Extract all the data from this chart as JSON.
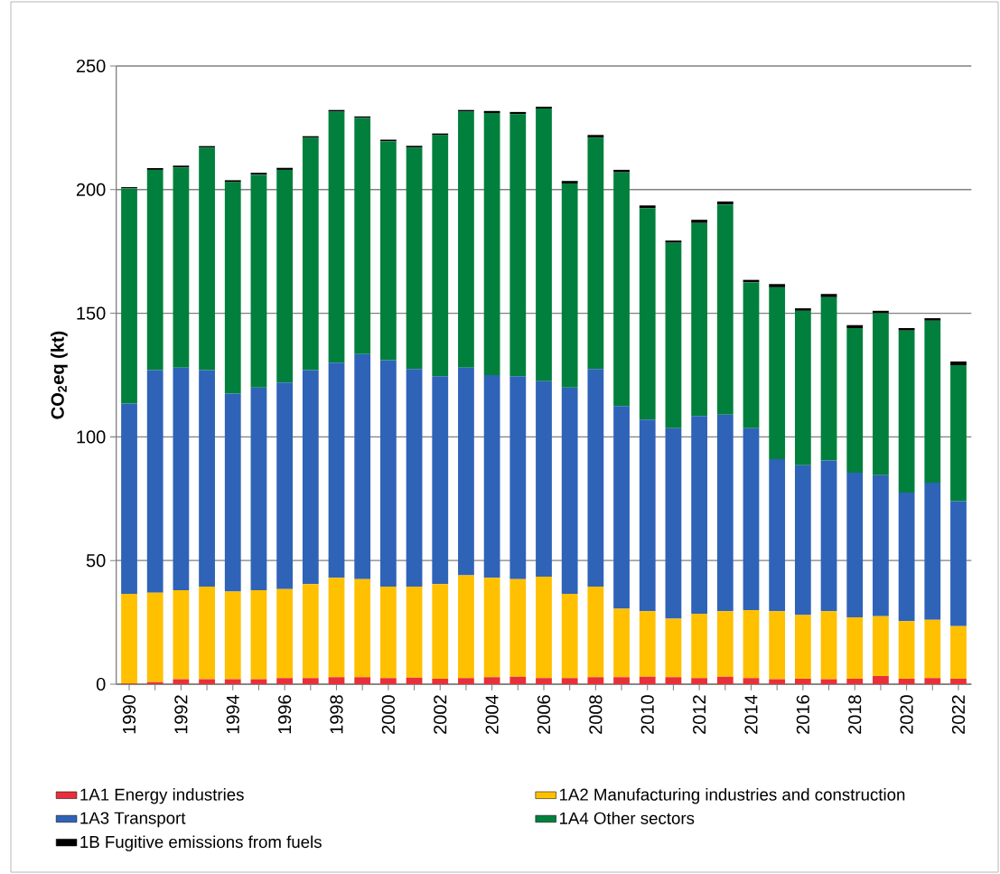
{
  "chart_data": {
    "type": "bar",
    "stacked": true,
    "ylabel": "CO$_{2}$eq (kt)",
    "categories": [
      "1990",
      null,
      "1992",
      null,
      "1994",
      null,
      "1996",
      null,
      "1998",
      null,
      "2000",
      null,
      "2002",
      null,
      "2004",
      null,
      "2006",
      null,
      "2008",
      null,
      "2010",
      null,
      "2012",
      null,
      "2014",
      null,
      "2016",
      null,
      "2018",
      null,
      "2020",
      null,
      "2022"
    ],
    "series": [
      {
        "name": "1A1 Energy industries",
        "color": "#e8303a",
        "values": [
          0.3,
          0.8,
          2,
          2,
          2,
          2,
          2.5,
          2.5,
          2.8,
          2.8,
          2.5,
          2.6,
          2.2,
          2.5,
          2.8,
          3,
          2.5,
          2.5,
          2.8,
          2.8,
          3,
          2.8,
          2.5,
          3,
          2.5,
          2,
          2.2,
          2,
          2.2,
          3.3,
          2.2,
          2.5,
          2.2
        ]
      },
      {
        "name": "1A2 Manufacturing industries and construction",
        "color": "#ffc000",
        "values": [
          36.2,
          36.2,
          36,
          37.5,
          35.5,
          36,
          36,
          38,
          40.2,
          39.7,
          37,
          36.9,
          38.3,
          41.5,
          40.2,
          39.5,
          41,
          34,
          36.7,
          27.7,
          26.5,
          23.7,
          26,
          26.5,
          27.5,
          27.5,
          25.8,
          27.5,
          24.8,
          24.2,
          23.3,
          23.5,
          21.3
        ]
      },
      {
        "name": "1A3 Transport",
        "color": "#2e63b8",
        "values": [
          77,
          90,
          90,
          87.5,
          80,
          82,
          83.5,
          86.5,
          87,
          91,
          91.5,
          88,
          84,
          84,
          82,
          82,
          79,
          83.5,
          88,
          82,
          77.5,
          77,
          80,
          79.5,
          73.5,
          61.5,
          60.5,
          61,
          58.5,
          57,
          52,
          55.5,
          50.5
        ]
      },
      {
        "name": "1A4 Other sectors",
        "color": "#00803c",
        "values": [
          87,
          81,
          81,
          90,
          85.5,
          86,
          86,
          94,
          101.5,
          95.5,
          88.5,
          89.5,
          97.5,
          103.5,
          106,
          106,
          110.3,
          82.5,
          93.5,
          94.5,
          85.5,
          75,
          78,
          85,
          59,
          69.5,
          62.5,
          66,
          58.5,
          65.5,
          65.5,
          65.5,
          55
        ]
      },
      {
        "name": "1B Fugitive emissions from fuels",
        "color": "#000000",
        "values": [
          0.5,
          0.7,
          0.7,
          0.6,
          0.8,
          0.8,
          0.8,
          0.6,
          0.7,
          0.6,
          0.7,
          0.7,
          0.7,
          0.7,
          0.8,
          0.9,
          0.7,
          1,
          1.1,
          1,
          1.1,
          0.9,
          1.3,
          1.2,
          1,
          1.3,
          1,
          1.3,
          1.2,
          1,
          1,
          1,
          1.5
        ]
      }
    ],
    "ylim": [
      0,
      250
    ],
    "yticks": [
      0,
      50,
      100,
      150,
      200,
      250
    ],
    "grid": "y",
    "legend": "bottom"
  }
}
